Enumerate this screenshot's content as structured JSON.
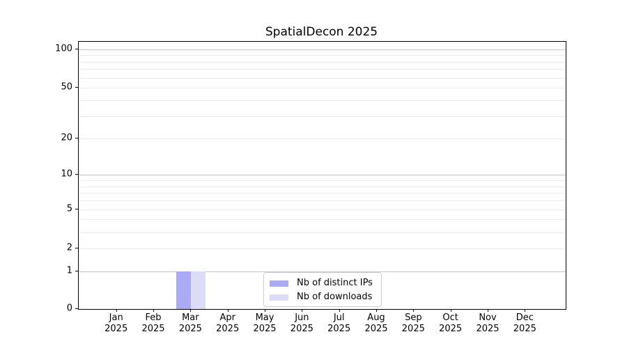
{
  "chart_data": {
    "type": "bar",
    "title": "SpatialDecon 2025",
    "categories": [
      "Jan",
      "Feb",
      "Mar",
      "Apr",
      "May",
      "Jun",
      "Jul",
      "Aug",
      "Sep",
      "Oct",
      "Nov",
      "Dec"
    ],
    "x_tick_year": "2025",
    "series": [
      {
        "name": "Nb of distinct IPs",
        "color": "#aaaaf5",
        "values": [
          0,
          0,
          1,
          0,
          0,
          0,
          0,
          0,
          0,
          0,
          0,
          0
        ]
      },
      {
        "name": "Nb of downloads",
        "color": "#dcdcf9",
        "values": [
          0,
          0,
          1,
          0,
          0,
          0,
          0,
          0,
          0,
          0,
          0,
          0
        ]
      }
    ],
    "xlabel": "",
    "ylabel": "",
    "y_axis": {
      "scale": "log1p",
      "ticks": [
        0,
        1,
        2,
        5,
        10,
        20,
        50,
        100
      ],
      "major_grid_values": [
        1,
        10,
        100
      ],
      "minor_grid_values": [
        2,
        3,
        4,
        5,
        6,
        7,
        8,
        9,
        20,
        30,
        40,
        50,
        60,
        70,
        80,
        90
      ],
      "range_top_value": 113
    },
    "grid": {
      "major_color": "#c4c4c4",
      "minor_color": "#ececec"
    },
    "legend_position": "lower center",
    "colors": {
      "spine": "#000000",
      "text": "#000000",
      "background": "#ffffff",
      "legend_border": "#cccccc"
    }
  }
}
